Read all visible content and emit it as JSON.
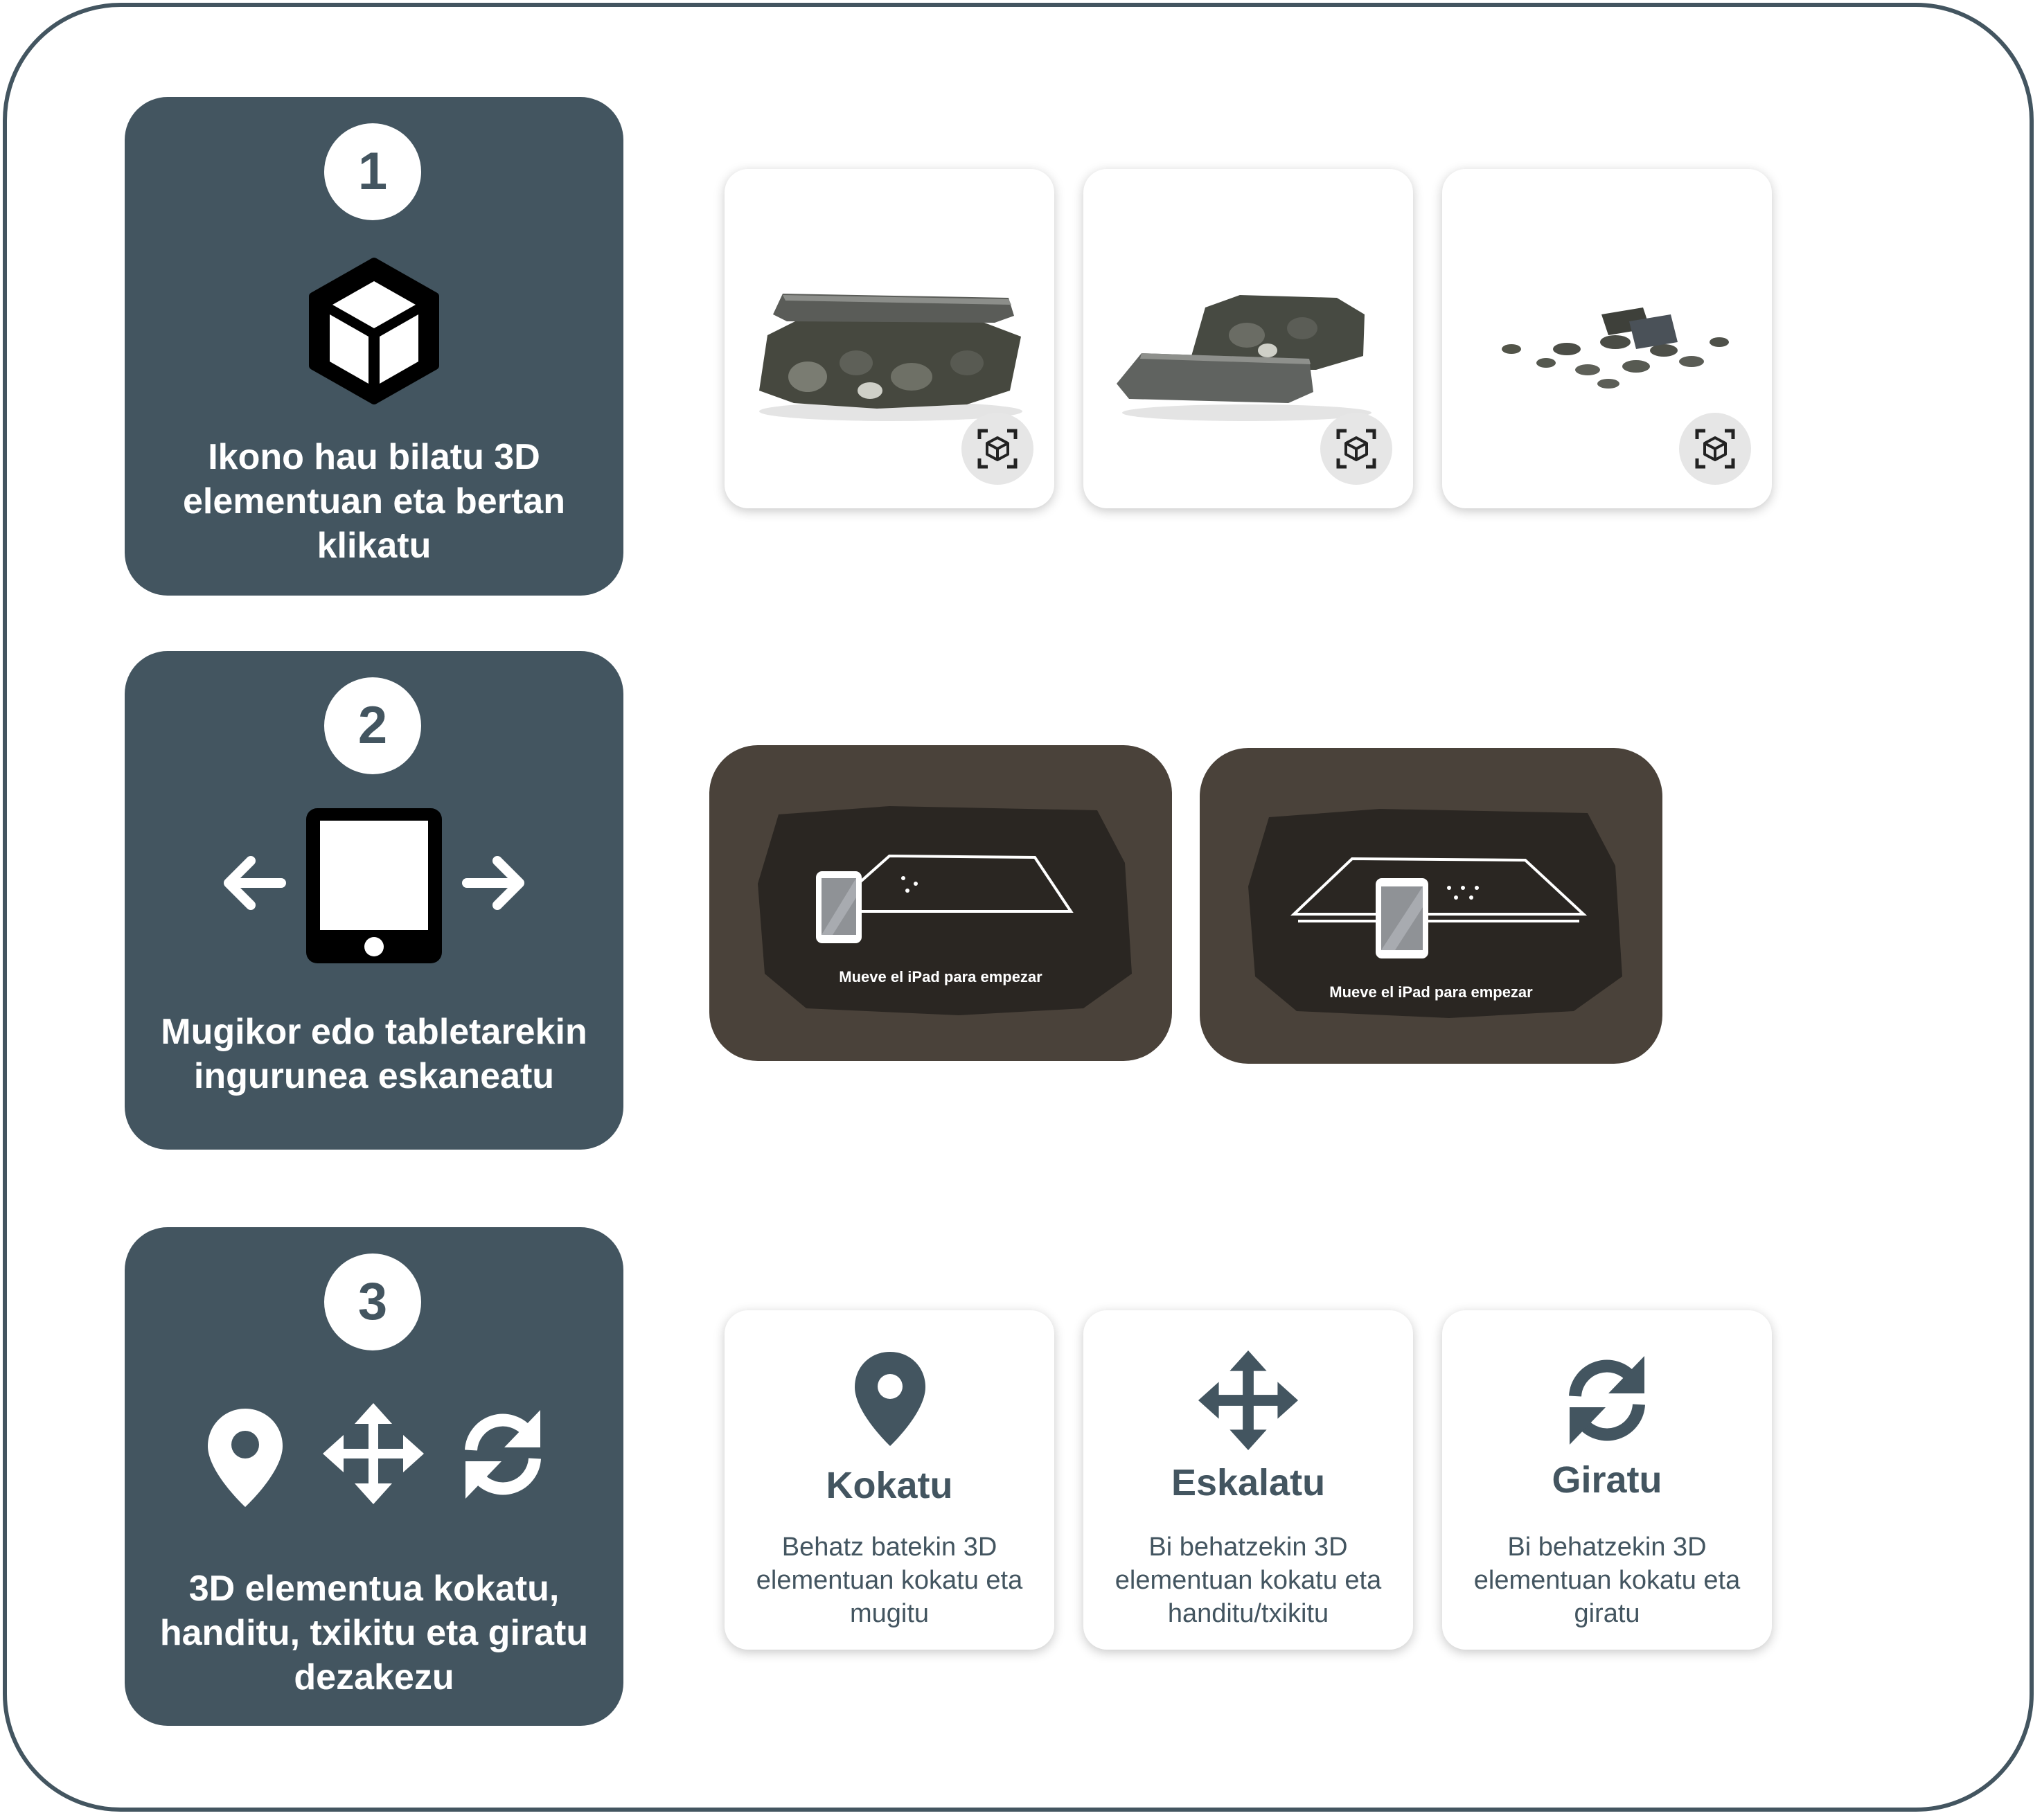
{
  "steps": [
    {
      "number": "1",
      "text": "Ikono hau bilatu 3D elementuan eta bertan klikatu"
    },
    {
      "number": "2",
      "text": "Mugikor edo tabletarekin ingurunea eskaneatu"
    },
    {
      "number": "3",
      "text": "3D elementua kokatu, handitu, txikitu eta giratu dezakezu"
    }
  ],
  "scan_screens": [
    {
      "caption": "Mueve el iPad para empezar"
    },
    {
      "caption": "Mueve el iPad para empezar"
    }
  ],
  "actions": [
    {
      "title": "Kokatu",
      "description": "Behatz batekin  3D elementuan kokatu eta mugitu",
      "icon": "map-pin-icon"
    },
    {
      "title": "Eskalatu",
      "description": "Bi behatzekin 3D elementuan kokatu eta handitu/txikitu",
      "icon": "move-arrows-icon"
    },
    {
      "title": "Giratu",
      "description": "Bi behatzekin 3D elementuan kokatu eta giratu",
      "icon": "rotate-icon"
    }
  ],
  "colors": {
    "panel": "#435560",
    "scan_bg": "#4a423a"
  }
}
